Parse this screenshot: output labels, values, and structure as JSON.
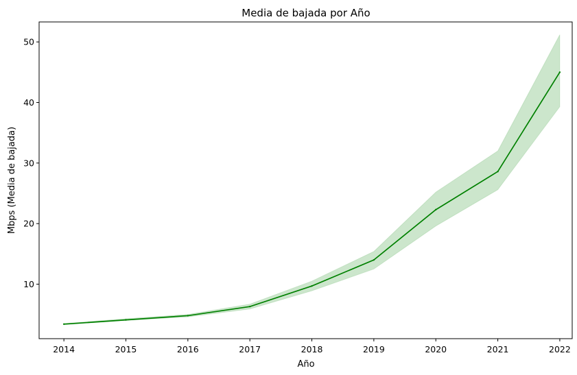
{
  "chart_data": {
    "type": "line",
    "title": "Media de bajada por Año",
    "xlabel": "Año",
    "ylabel": "Mbps (Media de bajada)",
    "x": [
      2014,
      2015,
      2016,
      2017,
      2018,
      2019,
      2020,
      2021,
      2022
    ],
    "xticks": [
      "2014",
      "2015",
      "2016",
      "2017",
      "2018",
      "2019",
      "2020",
      "2021",
      "2022"
    ],
    "yticks": [
      "10",
      "20",
      "30",
      "40",
      "50"
    ],
    "ytick_values": [
      10,
      20,
      30,
      40,
      50
    ],
    "xlim": [
      2013.6,
      2022.2
    ],
    "ylim": [
      1.0,
      53.3
    ],
    "grid": false,
    "series": [
      {
        "values": [
          3.4,
          4.1,
          4.8,
          6.3,
          9.7,
          14.0,
          22.3,
          28.6,
          45.0
        ],
        "ci_lower": [
          3.3,
          4.0,
          4.6,
          5.9,
          8.9,
          12.5,
          19.6,
          25.6,
          39.3
        ],
        "ci_upper": [
          3.5,
          4.3,
          5.0,
          6.7,
          10.5,
          15.4,
          25.2,
          32.0,
          51.2
        ],
        "color": "#008000",
        "band_color": "#008000"
      }
    ]
  }
}
